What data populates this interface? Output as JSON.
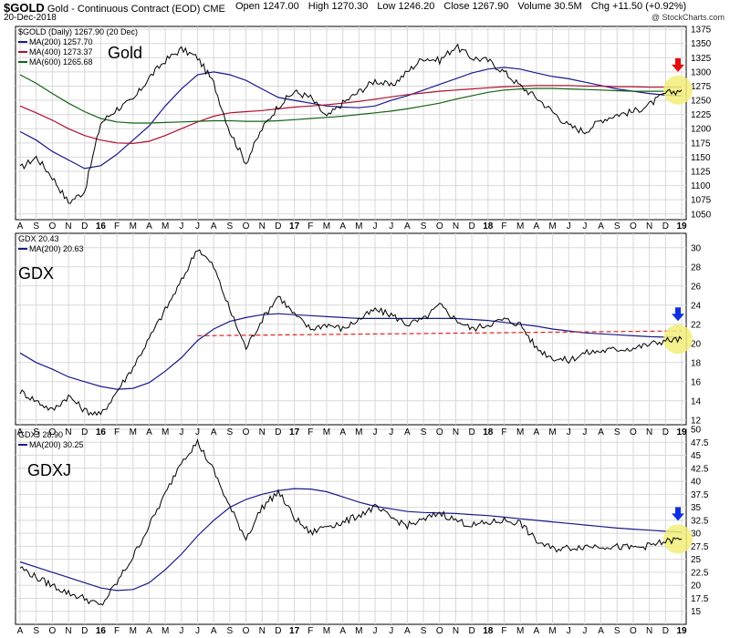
{
  "header": {
    "symbol": "$GOLD",
    "description": "Gold - Continuous Contract (EOD)",
    "exchange": "CME",
    "date": "20-Dec-2018",
    "open": "Open 1247.00",
    "high": "High 1270.30",
    "low": "Low 1246.20",
    "close": "Close 1267.90",
    "volume": "Volume 30.5M",
    "chg": "Chg +11.50 (+0.92%)",
    "credit": "@ StockCharts.com"
  },
  "colors": {
    "price": "#000000",
    "ma200": "#1a1a8c",
    "ma400": "#b01030",
    "ma600": "#146414",
    "support": "#e02020",
    "highlight": "#f2ee7a",
    "arrow_red": "#e01010",
    "arrow_blue": "#1030e0",
    "grid": "#d8d8d8"
  },
  "chart_data": [
    {
      "type": "line",
      "title": "Gold",
      "legend_title": "$GOLD (Daily) 1267.90 (20 Dec)",
      "ylim": [
        1040,
        1380
      ],
      "yticks": [
        1050,
        1075,
        1100,
        1125,
        1150,
        1175,
        1200,
        1225,
        1250,
        1275,
        1300,
        1325,
        1350,
        1375
      ],
      "x_months": [
        0,
        1,
        2,
        3,
        4,
        5,
        6,
        7,
        8,
        9,
        10,
        11,
        12,
        13,
        14,
        15,
        16,
        17,
        18,
        19,
        20,
        21,
        22,
        23,
        24,
        25,
        26,
        27,
        28,
        29,
        30,
        31,
        32,
        33,
        34,
        35,
        36,
        37,
        38,
        39,
        40,
        41
      ],
      "series": [
        {
          "name": "$GOLD",
          "values": [
            1130,
            1150,
            1115,
            1070,
            1090,
            1210,
            1235,
            1250,
            1290,
            1320,
            1340,
            1325,
            1280,
            1195,
            1140,
            1200,
            1240,
            1265,
            1255,
            1220,
            1245,
            1265,
            1285,
            1275,
            1300,
            1325,
            1320,
            1345,
            1325,
            1320,
            1300,
            1275,
            1255,
            1230,
            1205,
            1195,
            1215,
            1225,
            1230,
            1242,
            1262,
            1268
          ]
        },
        {
          "name": "MA(200) 1257.70",
          "values": [
            1195,
            1180,
            1160,
            1145,
            1130,
            1135,
            1155,
            1180,
            1205,
            1240,
            1270,
            1295,
            1300,
            1295,
            1285,
            1270,
            1255,
            1250,
            1245,
            1240,
            1238,
            1237,
            1240,
            1250,
            1258,
            1268,
            1278,
            1288,
            1298,
            1305,
            1308,
            1305,
            1298,
            1292,
            1288,
            1282,
            1276,
            1270,
            1266,
            1262,
            1259,
            1258
          ]
        },
        {
          "name": "MA(400) 1273.37",
          "values": [
            1240,
            1228,
            1215,
            1200,
            1188,
            1180,
            1175,
            1174,
            1178,
            1188,
            1200,
            1212,
            1222,
            1228,
            1230,
            1232,
            1235,
            1238,
            1240,
            1242,
            1245,
            1248,
            1252,
            1256,
            1260,
            1263,
            1266,
            1268,
            1270,
            1272,
            1274,
            1275,
            1276,
            1276,
            1276,
            1275,
            1275,
            1274,
            1274,
            1273,
            1273,
            1273
          ]
        },
        {
          "name": "MA(600) 1265.68",
          "values": [
            1295,
            1280,
            1262,
            1245,
            1230,
            1218,
            1212,
            1210,
            1210,
            1211,
            1212,
            1213,
            1214,
            1214,
            1213,
            1213,
            1214,
            1216,
            1218,
            1220,
            1222,
            1225,
            1228,
            1231,
            1235,
            1240,
            1245,
            1252,
            1258,
            1264,
            1268,
            1270,
            1271,
            1271,
            1270,
            1269,
            1268,
            1267,
            1266,
            1266,
            1266,
            1266
          ]
        }
      ]
    },
    {
      "type": "line",
      "title": "GDX",
      "legend_title": "GDX 20.43",
      "ylim": [
        11.5,
        31.5
      ],
      "yticks": [
        12,
        14,
        16,
        18,
        20,
        22,
        24,
        26,
        28,
        30
      ],
      "support_level": [
        20.8,
        21.3
      ],
      "series": [
        {
          "name": "GDX",
          "values": [
            15,
            14,
            13,
            14.5,
            13,
            12.5,
            15,
            17.5,
            20.5,
            23.5,
            26.5,
            30,
            28,
            23.5,
            19.5,
            22.5,
            25,
            23,
            21.5,
            22,
            21.5,
            22.5,
            23.5,
            23,
            22,
            22.5,
            24,
            22.5,
            21.5,
            22,
            22.5,
            22,
            19.5,
            18.5,
            18.2,
            19,
            19.2,
            19.4,
            19.5,
            19.9,
            20.3,
            20.43
          ]
        },
        {
          "name": "MA(200) 20.63",
          "values": [
            19,
            18,
            17.3,
            16.5,
            16,
            15.5,
            15.2,
            15.3,
            15.9,
            17.1,
            18.5,
            20.3,
            21.5,
            22.3,
            22.7,
            23,
            23.1,
            23,
            22.9,
            22.8,
            22.7,
            22.6,
            22.6,
            22.6,
            22.6,
            22.6,
            22.6,
            22.6,
            22.5,
            22.4,
            22.2,
            22,
            21.8,
            21.5,
            21.3,
            21.1,
            21,
            20.9,
            20.8,
            20.7,
            20.65,
            20.63
          ]
        }
      ]
    },
    {
      "type": "line",
      "title": "GDXJ",
      "legend_title": "GDXJ 28.90",
      "ylim": [
        12.5,
        50
      ],
      "yticks": [
        15,
        17.5,
        20,
        22.5,
        25,
        27.5,
        30,
        32.5,
        35,
        37.5,
        40,
        42.5,
        45,
        47.5,
        50
      ],
      "series": [
        {
          "name": "GDXJ",
          "values": [
            23.5,
            21.5,
            20,
            18.5,
            17.5,
            16,
            20.5,
            25.5,
            31.5,
            37.5,
            44,
            47.5,
            42,
            35,
            29,
            35,
            38,
            33,
            30,
            31.5,
            32,
            33.5,
            35,
            33,
            31.5,
            32.5,
            34,
            32.5,
            31.5,
            32,
            32.5,
            32,
            28.5,
            27,
            27.2,
            27.5,
            27.6,
            27.4,
            27.2,
            27.6,
            28.4,
            28.9
          ]
        },
        {
          "name": "MA(200) 30.25",
          "values": [
            24.5,
            23.5,
            22.5,
            21.5,
            20.5,
            19.5,
            19,
            19.2,
            20.5,
            23,
            26,
            29.5,
            32.5,
            35,
            36.5,
            37.5,
            38.2,
            38.6,
            38.5,
            38,
            37,
            36,
            35.2,
            34.7,
            34.2,
            34,
            33.9,
            33.8,
            33.6,
            33.4,
            33.1,
            32.8,
            32.5,
            32.2,
            31.9,
            31.6,
            31.3,
            31,
            30.8,
            30.6,
            30.4,
            30.25
          ]
        }
      ]
    }
  ],
  "time_axis": {
    "labels": [
      "A",
      "S",
      "O",
      "N",
      "D",
      "16",
      "F",
      "M",
      "A",
      "M",
      "J",
      "J",
      "A",
      "S",
      "O",
      "N",
      "D",
      "17",
      "F",
      "M",
      "A",
      "M",
      "J",
      "J",
      "A",
      "S",
      "O",
      "N",
      "D",
      "18",
      "F",
      "M",
      "A",
      "M",
      "J",
      "J",
      "A",
      "S",
      "O",
      "N",
      "D",
      "19"
    ],
    "year_labels": [
      "16",
      "17",
      "18",
      "19"
    ]
  }
}
